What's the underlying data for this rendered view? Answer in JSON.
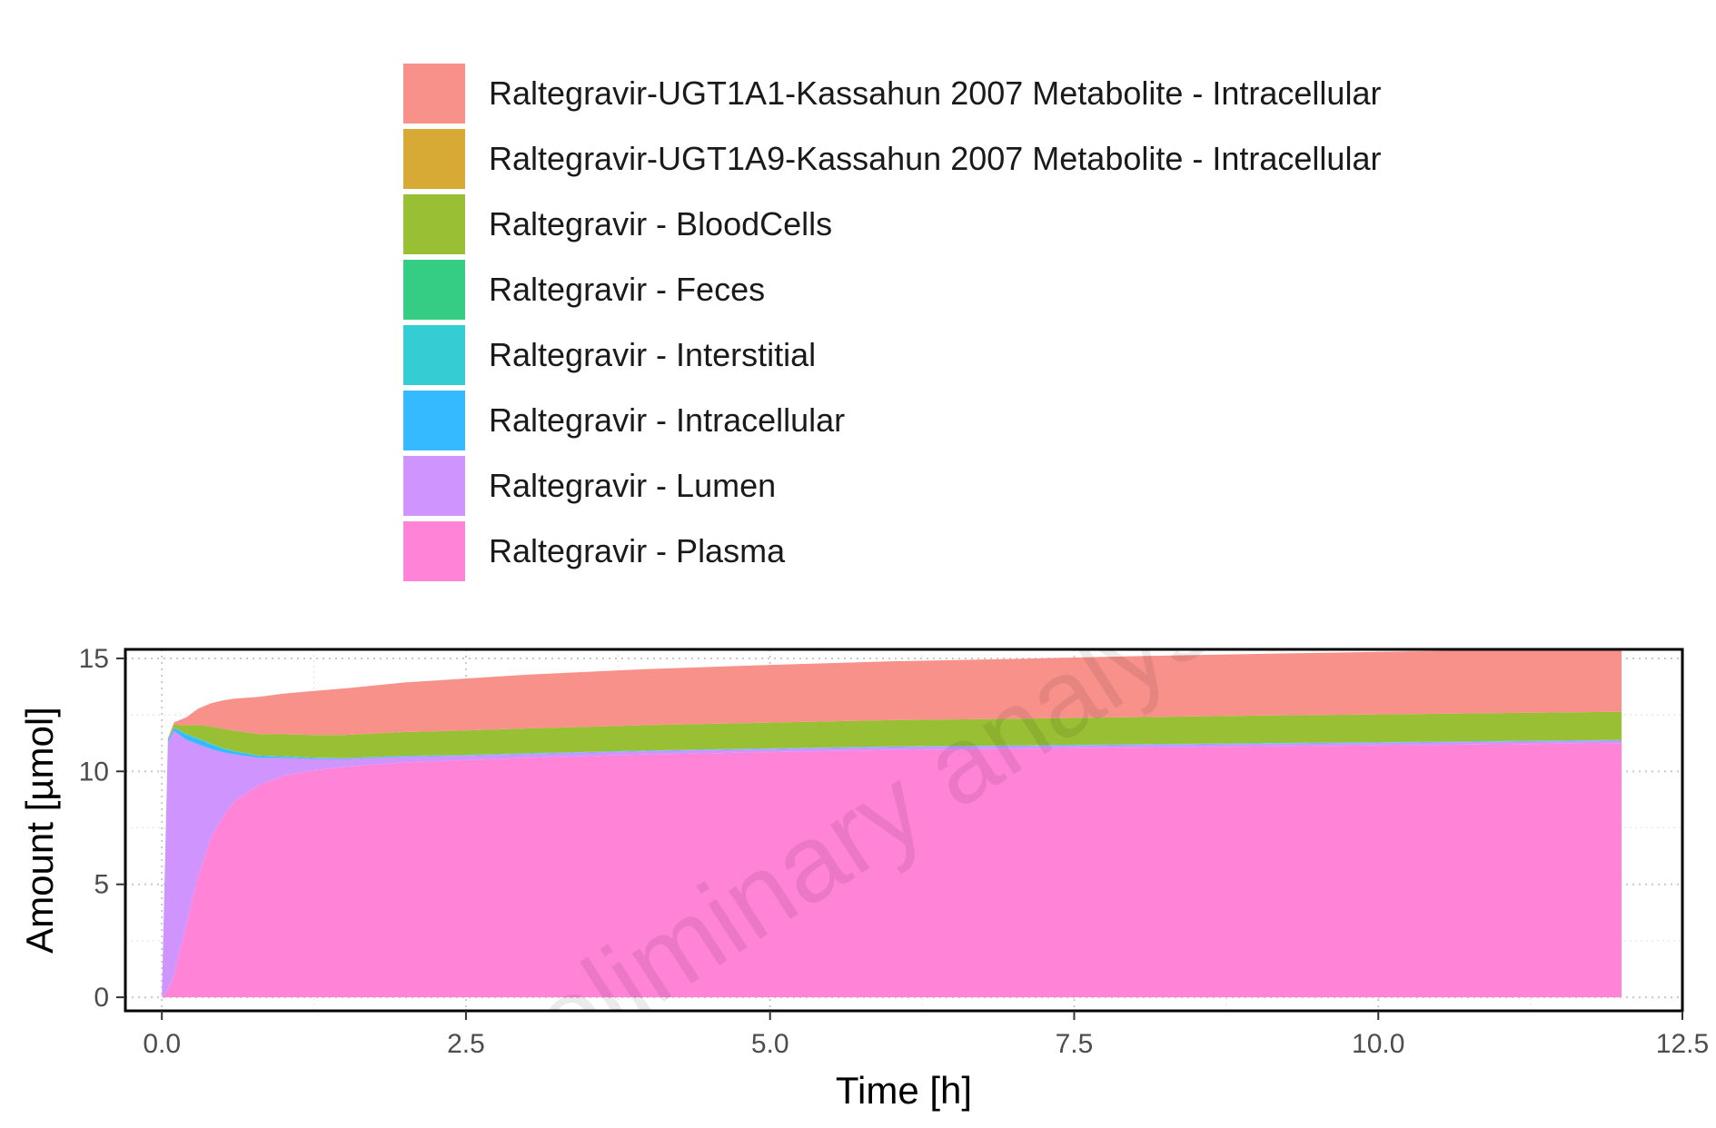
{
  "chart_data": {
    "type": "area",
    "stacked": true,
    "xlabel": "Time [h]",
    "ylabel": "Amount [µmol]",
    "xlim": [
      -0.3,
      12.5
    ],
    "ylim": [
      -0.6,
      15.4
    ],
    "xticks": [
      "0.0",
      "2.5",
      "5.0",
      "7.5",
      "10.0",
      "12.5"
    ],
    "yticks": [
      "0",
      "5",
      "10",
      "15"
    ],
    "grid": true,
    "legend_position": "top",
    "watermark": "preliminary analysis",
    "x": [
      0,
      0.05,
      0.1,
      0.2,
      0.3,
      0.4,
      0.5,
      0.6,
      0.8,
      1.0,
      1.25,
      1.5,
      2,
      2.5,
      3,
      4,
      5,
      6,
      7,
      8,
      9,
      10,
      11,
      12
    ],
    "series": [
      {
        "name": "Raltegravir - Plasma",
        "color": "#FF83D7",
        "values": [
          0,
          0.3,
          1.0,
          3.2,
          5.4,
          7.0,
          8.0,
          8.7,
          9.4,
          9.8,
          10.05,
          10.2,
          10.4,
          10.5,
          10.6,
          10.75,
          10.85,
          10.95,
          11.0,
          11.05,
          11.1,
          11.15,
          11.2,
          11.25
        ]
      },
      {
        "name": "Raltegravir - Lumen",
        "color": "#D094FF",
        "values": [
          0,
          11.0,
          10.8,
          8.2,
          5.8,
          4.0,
          2.85,
          2.05,
          1.2,
          0.8,
          0.5,
          0.35,
          0.25,
          0.2,
          0.17,
          0.15,
          0.14,
          0.13,
          0.12,
          0.12,
          0.12,
          0.11,
          0.11,
          0.11
        ]
      },
      {
        "name": "Raltegravir - Intracellular",
        "color": "#35B9FF",
        "values": [
          0,
          0.08,
          0.12,
          0.22,
          0.22,
          0.2,
          0.16,
          0.12,
          0.08,
          0.05,
          0.04,
          0.03,
          0.03,
          0.02,
          0.02,
          0.02,
          0.02,
          0.02,
          0.02,
          0.02,
          0.02,
          0.02,
          0.02,
          0.02
        ]
      },
      {
        "name": "Raltegravir - Interstitial",
        "color": "#35CDD4",
        "values": [
          0,
          0.02,
          0.03,
          0.04,
          0.04,
          0.04,
          0.03,
          0.03,
          0.02,
          0.02,
          0.02,
          0.01,
          0.01,
          0.01,
          0.01,
          0.01,
          0.01,
          0.01,
          0.01,
          0.01,
          0.01,
          0.01,
          0.01,
          0.01
        ]
      },
      {
        "name": "Raltegravir - Feces",
        "color": "#35CC84",
        "values": [
          0,
          0,
          0,
          0,
          0,
          0,
          0,
          0,
          0,
          0,
          0,
          0,
          0,
          0,
          0,
          0,
          0,
          0,
          0,
          0,
          0,
          0,
          0,
          0
        ]
      },
      {
        "name": "Raltegravir - BloodCells",
        "color": "#99BF35",
        "values": [
          0,
          0.05,
          0.12,
          0.38,
          0.6,
          0.75,
          0.85,
          0.9,
          0.95,
          0.97,
          1.0,
          1.02,
          1.05,
          1.08,
          1.1,
          1.12,
          1.14,
          1.16,
          1.18,
          1.2,
          1.22,
          1.23,
          1.24,
          1.25
        ]
      },
      {
        "name": "Raltegravir-UGT1A9-Kassahun 2007 Metabolite - Intracellular",
        "color": "#D6AA35",
        "values": [
          0,
          0,
          0,
          0,
          0,
          0,
          0,
          0,
          0,
          0,
          0,
          0,
          0,
          0,
          0,
          0,
          0,
          0,
          0,
          0,
          0,
          0,
          0,
          0
        ]
      },
      {
        "name": "Raltegravir-UGT1A1-Kassahun 2007 Metabolite - Intracellular",
        "color": "#F8918A",
        "values": [
          0,
          0.02,
          0.1,
          0.35,
          0.72,
          1.02,
          1.25,
          1.42,
          1.65,
          1.8,
          1.95,
          2.06,
          2.2,
          2.3,
          2.38,
          2.48,
          2.55,
          2.6,
          2.65,
          2.7,
          2.73,
          2.77,
          2.8,
          2.82
        ]
      }
    ],
    "legend_order": [
      "Raltegravir-UGT1A1-Kassahun 2007 Metabolite - Intracellular",
      "Raltegravir-UGT1A9-Kassahun 2007 Metabolite - Intracellular",
      "Raltegravir - BloodCells",
      "Raltegravir - Feces",
      "Raltegravir - Interstitial",
      "Raltegravir - Intracellular",
      "Raltegravir - Lumen",
      "Raltegravir - Plasma"
    ]
  }
}
